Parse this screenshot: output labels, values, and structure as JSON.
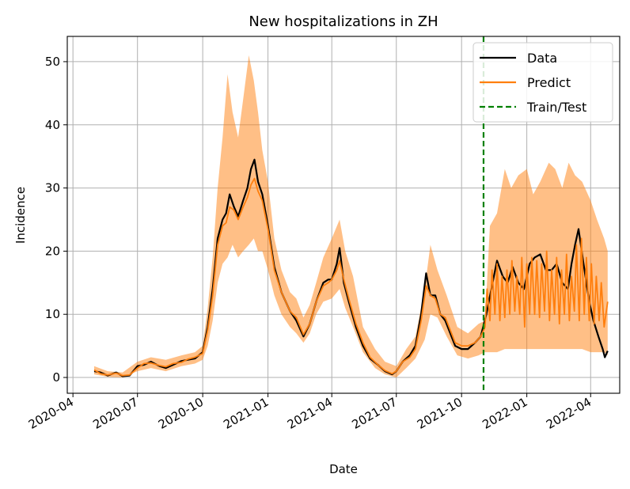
{
  "chart_data": {
    "type": "line",
    "title": "New hospitalizations in ZH",
    "xlabel": "Date",
    "ylabel": "Incidence",
    "xlim": [
      "2020-03-24",
      "2022-05-12"
    ],
    "ylim": [
      -2.5,
      54
    ],
    "x_ticks": [
      "2020-04-01",
      "2020-07-01",
      "2020-10-01",
      "2021-01-01",
      "2021-04-01",
      "2021-07-01",
      "2021-10-01",
      "2022-01-01",
      "2022-04-01"
    ],
    "x_tick_labels": [
      "2020-04",
      "2020-07",
      "2020-10",
      "2021-01",
      "2021-04",
      "2021-07",
      "2021-10",
      "2022-01",
      "2022-04"
    ],
    "y_ticks": [
      0,
      10,
      20,
      30,
      40,
      50
    ],
    "y_tick_labels": [
      "0",
      "10",
      "20",
      "30",
      "40",
      "50"
    ],
    "grid": true,
    "legend_position": "top-right",
    "train_test_split": "2021-11-01",
    "series": [
      {
        "name": "Data",
        "color": "#000000",
        "style": "solid",
        "x": [
          "2020-05-01",
          "2020-05-10",
          "2020-05-20",
          "2020-06-01",
          "2020-06-10",
          "2020-06-20",
          "2020-07-01",
          "2020-07-10",
          "2020-07-20",
          "2020-08-01",
          "2020-08-10",
          "2020-08-20",
          "2020-09-01",
          "2020-09-10",
          "2020-09-20",
          "2020-10-01",
          "2020-10-08",
          "2020-10-15",
          "2020-10-22",
          "2020-10-29",
          "2020-11-03",
          "2020-11-08",
          "2020-11-14",
          "2020-11-20",
          "2020-11-27",
          "2020-12-03",
          "2020-12-08",
          "2020-12-13",
          "2020-12-18",
          "2020-12-24",
          "2021-01-01",
          "2021-01-10",
          "2021-01-20",
          "2021-02-01",
          "2021-02-10",
          "2021-02-20",
          "2021-03-01",
          "2021-03-10",
          "2021-03-20",
          "2021-03-27",
          "2021-04-01",
          "2021-04-08",
          "2021-04-12",
          "2021-04-18",
          "2021-04-25",
          "2021-05-05",
          "2021-05-15",
          "2021-05-25",
          "2021-06-05",
          "2021-06-15",
          "2021-06-25",
          "2021-07-01",
          "2021-07-10",
          "2021-07-20",
          "2021-07-28",
          "2021-08-05",
          "2021-08-12",
          "2021-08-18",
          "2021-08-25",
          "2021-09-01",
          "2021-09-08",
          "2021-09-15",
          "2021-09-22",
          "2021-10-01",
          "2021-10-10",
          "2021-10-20",
          "2021-10-28",
          "2021-11-05",
          "2021-11-12",
          "2021-11-20",
          "2021-11-28",
          "2021-12-05",
          "2021-12-12",
          "2021-12-20",
          "2021-12-28",
          "2022-01-05",
          "2022-01-12",
          "2022-01-20",
          "2022-01-28",
          "2022-02-05",
          "2022-02-12",
          "2022-02-20",
          "2022-02-28",
          "2022-03-05",
          "2022-03-10",
          "2022-03-15",
          "2022-03-22",
          "2022-03-30",
          "2022-04-05",
          "2022-04-12",
          "2022-04-18",
          "2022-04-21",
          "2022-04-25"
        ],
        "values": [
          1.0,
          0.8,
          0.3,
          0.8,
          0.2,
          0.3,
          1.8,
          2.0,
          2.5,
          1.8,
          1.5,
          2.0,
          2.6,
          2.8,
          3.0,
          4.0,
          8.0,
          14.0,
          22.0,
          25.0,
          26.0,
          29.0,
          27.0,
          25.5,
          28.0,
          30.0,
          33.0,
          34.5,
          31.0,
          29.0,
          24.0,
          17.5,
          13.5,
          10.5,
          9.0,
          6.5,
          8.5,
          12.0,
          15.0,
          15.5,
          15.5,
          18.0,
          20.5,
          15.0,
          12.0,
          8.0,
          5.0,
          3.0,
          2.0,
          1.0,
          0.5,
          1.0,
          2.5,
          3.5,
          5.0,
          10.0,
          16.5,
          13.0,
          13.0,
          10.0,
          9.0,
          7.0,
          5.0,
          4.5,
          4.5,
          5.5,
          6.5,
          10.0,
          14.0,
          18.5,
          16.0,
          15.0,
          17.5,
          15.0,
          14.0,
          18.0,
          19.0,
          19.5,
          17.0,
          17.0,
          18.0,
          15.0,
          14.0,
          18.0,
          21.0,
          23.5,
          18.0,
          12.0,
          9.0,
          6.5,
          4.5,
          3.2,
          4.2
        ]
      },
      {
        "name": "Predict",
        "color": "#ff7f0e",
        "style": "solid",
        "x": [
          "2020-05-01",
          "2020-05-10",
          "2020-05-20",
          "2020-06-01",
          "2020-06-10",
          "2020-06-20",
          "2020-07-01",
          "2020-07-10",
          "2020-07-20",
          "2020-08-01",
          "2020-08-10",
          "2020-08-20",
          "2020-09-01",
          "2020-09-10",
          "2020-09-20",
          "2020-10-01",
          "2020-10-08",
          "2020-10-15",
          "2020-10-22",
          "2020-10-29",
          "2020-11-03",
          "2020-11-08",
          "2020-11-14",
          "2020-11-20",
          "2020-11-27",
          "2020-12-03",
          "2020-12-08",
          "2020-12-13",
          "2020-12-18",
          "2020-12-24",
          "2021-01-01",
          "2021-01-10",
          "2021-01-20",
          "2021-02-01",
          "2021-02-10",
          "2021-02-20",
          "2021-03-01",
          "2021-03-10",
          "2021-03-20",
          "2021-03-27",
          "2021-04-01",
          "2021-04-08",
          "2021-04-12",
          "2021-04-18",
          "2021-04-25",
          "2021-05-05",
          "2021-05-15",
          "2021-05-25",
          "2021-06-05",
          "2021-06-15",
          "2021-06-25",
          "2021-07-01",
          "2021-07-10",
          "2021-07-20",
          "2021-07-28",
          "2021-08-05",
          "2021-08-12",
          "2021-08-18",
          "2021-08-25",
          "2021-09-01",
          "2021-09-08",
          "2021-09-15",
          "2021-09-22",
          "2021-10-01",
          "2021-10-10",
          "2021-10-20",
          "2021-10-28",
          "2021-11-03",
          "2021-11-06",
          "2021-11-10",
          "2021-11-13",
          "2021-11-17",
          "2021-11-20",
          "2021-11-24",
          "2021-11-27",
          "2021-12-01",
          "2021-12-04",
          "2021-12-08",
          "2021-12-11",
          "2021-12-15",
          "2021-12-18",
          "2021-12-22",
          "2021-12-25",
          "2021-12-29",
          "2022-01-01",
          "2022-01-05",
          "2022-01-08",
          "2022-01-12",
          "2022-01-15",
          "2022-01-19",
          "2022-01-22",
          "2022-01-26",
          "2022-01-29",
          "2022-02-02",
          "2022-02-05",
          "2022-02-09",
          "2022-02-12",
          "2022-02-16",
          "2022-02-19",
          "2022-02-23",
          "2022-02-26",
          "2022-03-02",
          "2022-03-05",
          "2022-03-09",
          "2022-03-12",
          "2022-03-16",
          "2022-03-19",
          "2022-03-23",
          "2022-03-26",
          "2022-03-30",
          "2022-04-02",
          "2022-04-06",
          "2022-04-09",
          "2022-04-13",
          "2022-04-16",
          "2022-04-20",
          "2022-04-25"
        ],
        "values": [
          1.2,
          0.6,
          0.4,
          0.7,
          0.3,
          0.4,
          1.5,
          2.2,
          2.3,
          1.9,
          1.7,
          2.2,
          2.4,
          2.9,
          3.2,
          3.8,
          7.5,
          13.0,
          21.0,
          24.0,
          24.5,
          27.0,
          26.5,
          25.0,
          27.0,
          28.5,
          30.5,
          31.5,
          29.5,
          28.0,
          23.5,
          17.0,
          13.5,
          10.5,
          9.5,
          6.8,
          8.5,
          12.0,
          14.5,
          15.0,
          15.5,
          17.0,
          18.5,
          15.5,
          12.5,
          8.5,
          5.5,
          3.2,
          2.0,
          1.1,
          0.6,
          1.0,
          2.5,
          3.2,
          4.5,
          9.0,
          14.5,
          13.0,
          12.5,
          10.0,
          9.5,
          7.5,
          5.5,
          5.0,
          5.0,
          5.5,
          6.5,
          8.0,
          14.0,
          9.0,
          17.0,
          10.0,
          18.0,
          9.0,
          16.0,
          9.5,
          17.0,
          10.0,
          18.5,
          10.5,
          16.0,
          10.0,
          19.0,
          8.0,
          18.0,
          10.0,
          19.0,
          10.0,
          18.5,
          9.5,
          18.0,
          10.5,
          20.0,
          9.0,
          17.0,
          10.0,
          19.0,
          8.5,
          17.0,
          10.0,
          19.5,
          9.0,
          16.0,
          10.5,
          21.0,
          9.0,
          22.0,
          10.0,
          19.0,
          9.0,
          18.0,
          8.5,
          16.0,
          9.0,
          15.0,
          8.0,
          12.0
        ]
      },
      {
        "name": "Train/Test",
        "color": "#008000",
        "style": "dashed"
      }
    ],
    "band": {
      "color": "#ff7f0e",
      "opacity": 0.5,
      "x": [
        "2020-05-01",
        "2020-05-20",
        "2020-06-10",
        "2020-07-01",
        "2020-07-20",
        "2020-08-10",
        "2020-09-01",
        "2020-09-20",
        "2020-10-01",
        "2020-10-08",
        "2020-10-15",
        "2020-10-22",
        "2020-10-29",
        "2020-11-05",
        "2020-11-12",
        "2020-11-20",
        "2020-11-27",
        "2020-12-05",
        "2020-12-12",
        "2020-12-18",
        "2020-12-24",
        "2021-01-01",
        "2021-01-10",
        "2021-01-20",
        "2021-02-01",
        "2021-02-10",
        "2021-02-20",
        "2021-03-01",
        "2021-03-10",
        "2021-03-20",
        "2021-04-01",
        "2021-04-12",
        "2021-04-20",
        "2021-05-01",
        "2021-05-15",
        "2021-06-01",
        "2021-06-15",
        "2021-07-01",
        "2021-07-15",
        "2021-07-28",
        "2021-08-10",
        "2021-08-18",
        "2021-08-28",
        "2021-09-10",
        "2021-09-25",
        "2021-10-10",
        "2021-10-25",
        "2021-11-03",
        "2021-11-10",
        "2021-11-20",
        "2021-12-01",
        "2021-12-10",
        "2021-12-20",
        "2022-01-01",
        "2022-01-10",
        "2022-01-20",
        "2022-02-01",
        "2022-02-10",
        "2022-02-20",
        "2022-03-01",
        "2022-03-10",
        "2022-03-20",
        "2022-04-01",
        "2022-04-10",
        "2022-04-20",
        "2022-04-25"
      ],
      "lower": [
        0.5,
        0.1,
        0.0,
        1.0,
        1.5,
        1.0,
        1.8,
        2.2,
        2.8,
        5.0,
        9.0,
        15.0,
        18.0,
        19.0,
        21.0,
        19.0,
        20.0,
        21.0,
        22.0,
        20.0,
        20.0,
        17.0,
        13.0,
        10.0,
        8.0,
        7.0,
        5.5,
        7.0,
        10.0,
        12.0,
        12.5,
        14.0,
        11.0,
        8.0,
        4.0,
        1.5,
        0.5,
        0.0,
        1.5,
        3.0,
        6.0,
        10.0,
        9.5,
        6.5,
        3.5,
        3.0,
        3.5,
        4.0,
        4.0,
        4.0,
        4.5,
        4.5,
        4.5,
        4.5,
        4.5,
        4.5,
        4.5,
        4.5,
        4.5,
        4.5,
        4.5,
        4.5,
        4.0,
        4.0,
        4.0,
        3.5
      ],
      "upper": [
        1.8,
        1.0,
        0.8,
        2.5,
        3.2,
        2.8,
        3.5,
        4.0,
        5.0,
        11.0,
        19.0,
        30.0,
        38.0,
        48.0,
        42.0,
        38.0,
        44.0,
        51.0,
        47.0,
        42.0,
        36.0,
        31.0,
        22.0,
        17.0,
        13.5,
        12.5,
        9.5,
        11.5,
        15.0,
        19.0,
        22.0,
        25.0,
        20.0,
        16.0,
        8.0,
        4.5,
        2.5,
        1.8,
        4.5,
        6.5,
        14.0,
        21.0,
        17.0,
        13.0,
        8.0,
        7.0,
        8.5,
        9.0,
        24.0,
        26.0,
        33.0,
        30.0,
        32.0,
        33.0,
        29.0,
        31.0,
        34.0,
        33.0,
        30.0,
        34.0,
        32.0,
        31.0,
        28.0,
        25.0,
        22.0,
        20.0
      ]
    }
  }
}
